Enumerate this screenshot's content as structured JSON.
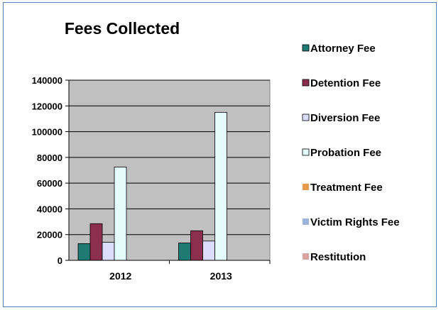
{
  "chart_data": {
    "type": "bar",
    "title": "Fees Collected",
    "xlabel": "",
    "ylabel": "",
    "categories": [
      "2012",
      "2013"
    ],
    "ylim": [
      0,
      140000
    ],
    "yticks": [
      0,
      20000,
      40000,
      60000,
      80000,
      100000,
      120000,
      140000
    ],
    "grid": true,
    "legend_position": "right",
    "series": [
      {
        "name": "Attorney Fee",
        "color": "#1f7a73",
        "values": [
          13000,
          13500
        ]
      },
      {
        "name": "Detention Fee",
        "color": "#8c2f4f",
        "values": [
          28500,
          23000
        ]
      },
      {
        "name": "Diversion Fee",
        "color": "#dcdcff",
        "values": [
          14000,
          15000
        ]
      },
      {
        "name": "Probation Fee",
        "color": "#e4fcfc",
        "values": [
          72500,
          115000
        ]
      },
      {
        "name": "Treatment Fee",
        "color": "#e69a4b",
        "values": [
          0,
          0
        ]
      },
      {
        "name": "Victim Rights Fee",
        "color": "#9fb3d9",
        "values": [
          0,
          0
        ]
      },
      {
        "name": "Restitution",
        "color": "#d9a3a3",
        "values": [
          0,
          0
        ]
      }
    ],
    "plot_background": "#c0c0c0"
  }
}
